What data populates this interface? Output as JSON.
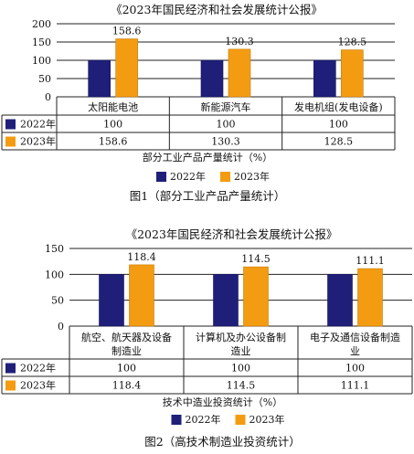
{
  "figures": [
    {
      "caption": "图1（部分工业产品产量统计）",
      "axis_title": "部分工业产品产量统计（%）"
    },
    {
      "caption": "图2（高技术制造业投资统计）",
      "axis_title": "技术中造业投资统计（%）"
    }
  ],
  "chart_data": [
    {
      "type": "bar",
      "title": "《2023年国民经济和社会发展统计公报》",
      "categories": [
        "太阳能电池",
        "新能源汽车",
        "发电机组(发电设备)"
      ],
      "category_lines": [
        [
          "太阳能电池"
        ],
        [
          "新能源汽车"
        ],
        [
          "发电机组(发电设备)"
        ]
      ],
      "series": [
        {
          "name": "2022年",
          "values": [
            100,
            100,
            100
          ],
          "color": "#1f1f7a"
        },
        {
          "name": "2023年",
          "values": [
            158.6,
            130.3,
            128.5
          ],
          "color": "#f39c12"
        }
      ],
      "table_values": [
        [
          "100",
          "100",
          "100"
        ],
        [
          "158.6",
          "130.3",
          "128.5"
        ]
      ],
      "data_labels": [
        "158.6",
        "130.3",
        "128.5"
      ],
      "yticks": [
        0,
        50,
        100,
        150,
        200
      ],
      "ylim": [
        0,
        200
      ],
      "grid": true,
      "legend": "bottom"
    },
    {
      "type": "bar",
      "title": "《2023年国民经济和社会发展统计公报》",
      "categories": [
        "航空、航天器及设备制造业",
        "计算机及办公设备制造业",
        "电子及通信设备制造业"
      ],
      "category_lines": [
        [
          "航空、航天器及设备",
          "制造业"
        ],
        [
          "计算机及办公设备制",
          "造业"
        ],
        [
          "电子及通信设备制造",
          "业"
        ]
      ],
      "series": [
        {
          "name": "2022年",
          "values": [
            100,
            100,
            100
          ],
          "color": "#1f1f7a"
        },
        {
          "name": "2023年",
          "values": [
            118.4,
            114.5,
            111.1
          ],
          "color": "#f39c12"
        }
      ],
      "table_values": [
        [
          "100",
          "100",
          "100"
        ],
        [
          "118.4",
          "114.5",
          "111.1"
        ]
      ],
      "data_labels": [
        "118.4",
        "114.5",
        "111.1"
      ],
      "yticks": [
        0,
        50,
        100,
        150
      ],
      "ylim": [
        0,
        150
      ],
      "grid": true,
      "legend": "bottom"
    }
  ]
}
